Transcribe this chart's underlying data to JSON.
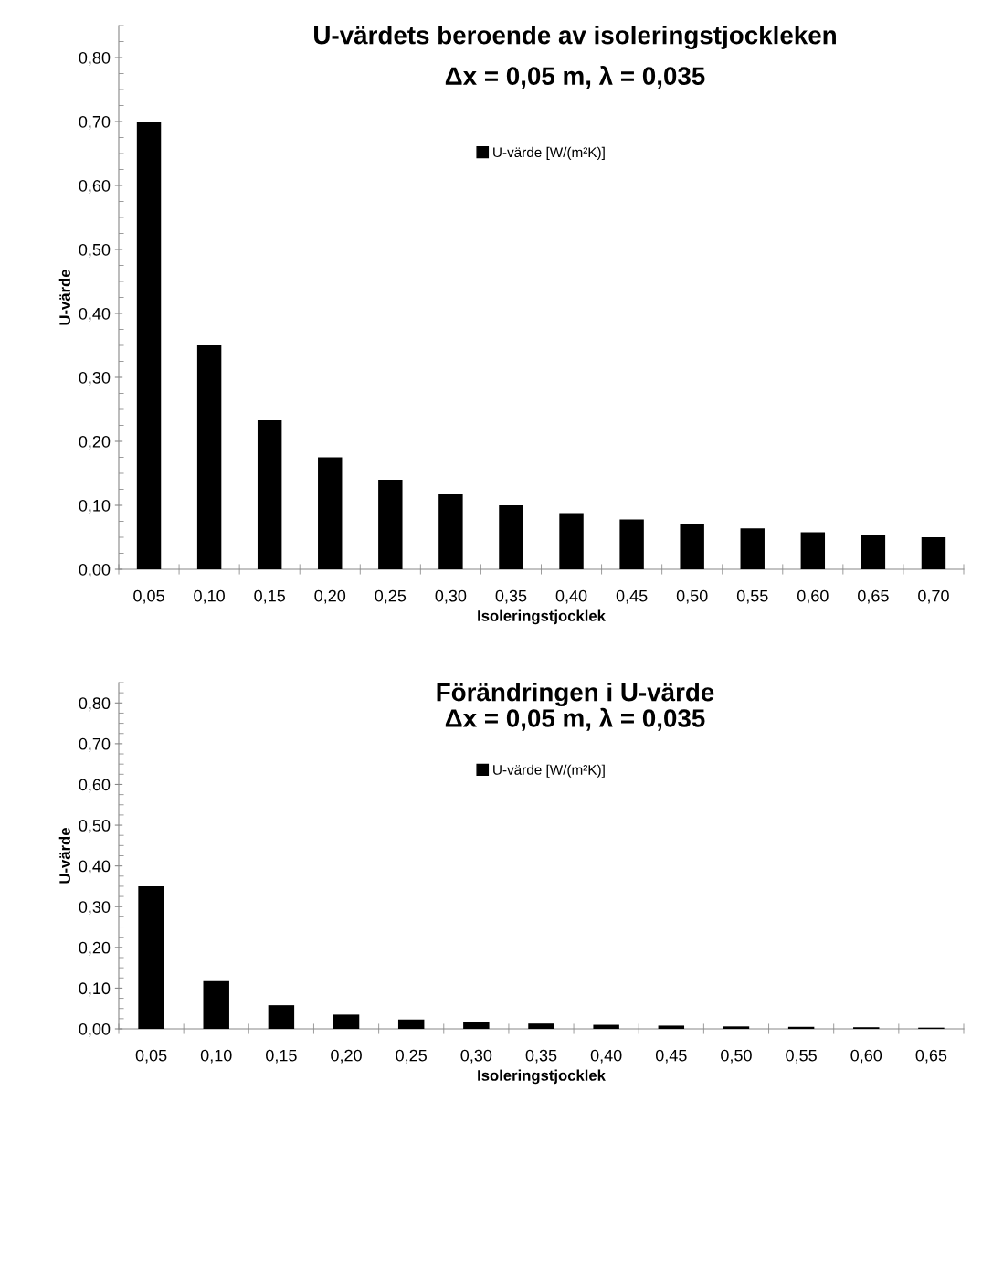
{
  "chart_data": [
    {
      "type": "bar",
      "title": "U-värdets beroende av isoleringstjockleken",
      "subtitle": "Δx = 0,05 m, λ = 0,035",
      "xlabel": "Isoleringstjocklek",
      "ylabel": "U-värde",
      "categories": [
        "0,05",
        "0,10",
        "0,15",
        "0,20",
        "0,25",
        "0,30",
        "0,35",
        "0,40",
        "0,45",
        "0,50",
        "0,55",
        "0,60",
        "0,65",
        "0,70"
      ],
      "series": [
        {
          "name": "U-värde [W/(m²K)]",
          "color": "#000000",
          "values": [
            0.7,
            0.35,
            0.233,
            0.175,
            0.14,
            0.117,
            0.1,
            0.088,
            0.078,
            0.07,
            0.064,
            0.058,
            0.054,
            0.05
          ]
        }
      ],
      "ylim": [
        0,
        0.85
      ],
      "yticks": [
        {
          "value": 0,
          "label": "0,00"
        },
        {
          "value": 0.1,
          "label": "0,10"
        },
        {
          "value": 0.2,
          "label": "0,20"
        },
        {
          "value": 0.3,
          "label": "0,30"
        },
        {
          "value": 0.4,
          "label": "0,40"
        },
        {
          "value": 0.5,
          "label": "0,50"
        },
        {
          "value": 0.6,
          "label": "0,60"
        },
        {
          "value": 0.7,
          "label": "0,70"
        },
        {
          "value": 0.8,
          "label": "0,80"
        }
      ],
      "legend": "top",
      "grid": false
    },
    {
      "type": "bar",
      "title": "Förändringen i U-värde",
      "subtitle": "Δx = 0,05 m, λ = 0,035",
      "xlabel": "Isoleringstjocklek",
      "ylabel": "U-värde",
      "categories": [
        "0,05",
        "0,10",
        "0,15",
        "0,20",
        "0,25",
        "0,30",
        "0,35",
        "0,40",
        "0,45",
        "0,50",
        "0,55",
        "0,60",
        "0,65"
      ],
      "series": [
        {
          "name": "U-värde [W/(m²K)]",
          "color": "#000000",
          "values": [
            0.35,
            0.117,
            0.058,
            0.035,
            0.023,
            0.017,
            0.013,
            0.01,
            0.008,
            0.006,
            0.005,
            0.004,
            0.003
          ]
        }
      ],
      "ylim": [
        0,
        0.85
      ],
      "yticks": [
        {
          "value": 0,
          "label": "0,00"
        },
        {
          "value": 0.1,
          "label": "0,10"
        },
        {
          "value": 0.2,
          "label": "0,20"
        },
        {
          "value": 0.3,
          "label": "0,30"
        },
        {
          "value": 0.4,
          "label": "0,40"
        },
        {
          "value": 0.5,
          "label": "0,50"
        },
        {
          "value": 0.6,
          "label": "0,60"
        },
        {
          "value": 0.7,
          "label": "0,70"
        },
        {
          "value": 0.8,
          "label": "0,80"
        }
      ],
      "legend": "top",
      "grid": false
    }
  ]
}
